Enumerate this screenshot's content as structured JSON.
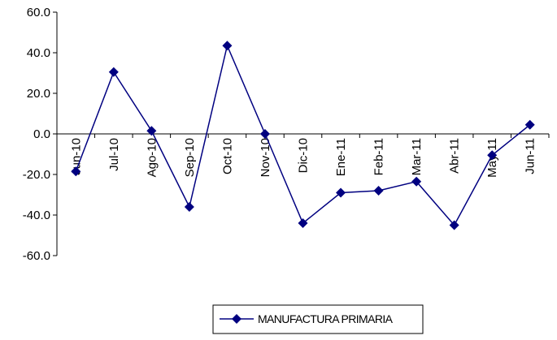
{
  "chart_data": {
    "type": "line",
    "categories": [
      "Jun-10",
      "Jul-10",
      "Ago-10",
      "Sep-10",
      "Oct-10",
      "Nov-10",
      "Dic-10",
      "Ene-11",
      "Feb-11",
      "Mar-11",
      "Abr-11",
      "May-11",
      "Jun-11"
    ],
    "series": [
      {
        "name": "MANUFACTURA PRIMARIA",
        "values": [
          -18.5,
          30.5,
          1.5,
          -36.0,
          43.5,
          0.0,
          -44.0,
          -29.0,
          -28.0,
          -23.5,
          -45.0,
          -10.5,
          4.5
        ],
        "color": "#000080"
      }
    ],
    "ylim": [
      -60,
      60
    ],
    "yticks": [
      "60.0",
      "40.0",
      "20.0",
      "0.0",
      "-20.0",
      "-40.0",
      "-60.0"
    ],
    "grid": false,
    "legend": "bottom-center",
    "marker": "diamond"
  }
}
